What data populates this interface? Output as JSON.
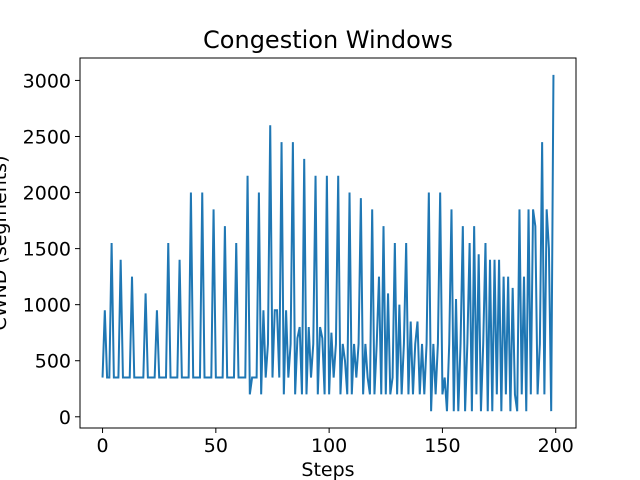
{
  "chart_data": {
    "type": "line",
    "title": "Congestion Windows",
    "x_label": "Steps",
    "y_label": "CWND (segments)",
    "x": [
      0,
      1,
      2,
      3,
      4,
      5,
      6,
      7,
      8,
      9,
      10,
      11,
      12,
      13,
      14,
      15,
      16,
      17,
      18,
      19,
      20,
      21,
      22,
      23,
      24,
      25,
      26,
      27,
      28,
      29,
      30,
      31,
      32,
      33,
      34,
      35,
      36,
      37,
      38,
      39,
      40,
      41,
      42,
      43,
      44,
      45,
      46,
      47,
      48,
      49,
      50,
      51,
      52,
      53,
      54,
      55,
      56,
      57,
      58,
      59,
      60,
      61,
      62,
      63,
      64,
      65,
      66,
      67,
      68,
      69,
      70,
      71,
      72,
      73,
      74,
      75,
      76,
      77,
      78,
      79,
      80,
      81,
      82,
      83,
      84,
      85,
      86,
      87,
      88,
      89,
      90,
      91,
      92,
      93,
      94,
      95,
      96,
      97,
      98,
      99,
      100,
      101,
      102,
      103,
      104,
      105,
      106,
      107,
      108,
      109,
      110,
      111,
      112,
      113,
      114,
      115,
      116,
      117,
      118,
      119,
      120,
      121,
      122,
      123,
      124,
      125,
      126,
      127,
      128,
      129,
      130,
      131,
      132,
      133,
      134,
      135,
      136,
      137,
      138,
      139,
      140,
      141,
      142,
      143,
      144,
      145,
      146,
      147,
      148,
      149,
      150,
      151,
      152,
      153,
      154,
      155,
      156,
      157,
      158,
      159,
      160,
      161,
      162,
      163,
      164,
      165,
      166,
      167,
      168,
      169,
      170,
      171,
      172,
      173,
      174,
      175,
      176,
      177,
      178,
      179,
      180,
      181,
      182,
      183,
      184,
      185,
      186,
      187,
      188,
      189,
      190,
      191,
      192,
      193,
      194,
      195,
      196,
      197,
      198,
      199
    ],
    "series": [
      {
        "color": "#1f77b4",
        "values": [
          350,
          950,
          350,
          350,
          1550,
          350,
          350,
          350,
          1400,
          350,
          350,
          350,
          350,
          1250,
          350,
          350,
          350,
          350,
          350,
          1100,
          350,
          350,
          350,
          350,
          950,
          350,
          350,
          350,
          350,
          1550,
          350,
          350,
          350,
          350,
          1400,
          350,
          350,
          350,
          350,
          2000,
          350,
          350,
          350,
          350,
          2000,
          350,
          350,
          350,
          350,
          1850,
          350,
          350,
          350,
          350,
          1700,
          350,
          350,
          350,
          350,
          1550,
          350,
          350,
          350,
          350,
          2150,
          200,
          350,
          350,
          350,
          2000,
          200,
          950,
          350,
          650,
          2600,
          350,
          950,
          950,
          350,
          2450,
          200,
          950,
          350,
          650,
          2450,
          200,
          700,
          800,
          200,
          2300,
          200,
          800,
          350,
          650,
          2150,
          200,
          800,
          700,
          200,
          2150,
          200,
          750,
          350,
          650,
          2150,
          200,
          650,
          500,
          200,
          2000,
          200,
          650,
          350,
          650,
          1950,
          200,
          650,
          350,
          200,
          1850,
          200,
          650,
          1250,
          200,
          1700,
          200,
          1100,
          200,
          350,
          1550,
          200,
          1000,
          200,
          650,
          1550,
          200,
          850,
          200,
          650,
          850,
          200,
          650,
          200,
          650,
          2000,
          50,
          650,
          200,
          650,
          2000,
          200,
          350,
          50,
          650,
          1850,
          50,
          1050,
          50,
          650,
          1700,
          50,
          650,
          1550,
          50,
          1700,
          200,
          1450,
          50,
          650,
          1550,
          50,
          1400,
          50,
          1400,
          200,
          1400,
          50,
          1250,
          200,
          1250,
          50,
          1150,
          200,
          50,
          1850,
          200,
          1250,
          50,
          1850,
          200,
          1850,
          1700,
          200,
          650,
          2450,
          200,
          1850,
          1500,
          50,
          3050
        ]
      }
    ],
    "xlim": [
      -9.95,
      208.95
    ],
    "ylim": [
      -100,
      3200
    ],
    "xticks": [
      0,
      50,
      100,
      150,
      200
    ],
    "yticks": [
      0,
      500,
      1000,
      1500,
      2000,
      2500,
      3000
    ]
  }
}
